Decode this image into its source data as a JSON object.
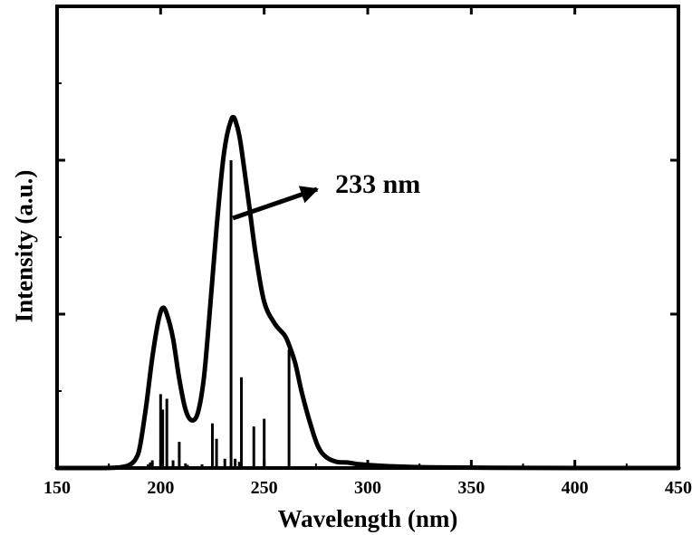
{
  "chart_data": {
    "type": "line",
    "title": "",
    "xlabel": "Wavelength (nm)",
    "ylabel": "Intensity (a.u.)",
    "xlim": [
      150,
      450
    ],
    "ylim": [
      0,
      1.5
    ],
    "x_ticks": [
      150,
      200,
      250,
      300,
      350,
      400,
      450
    ],
    "x_tick_labels": [
      "150",
      "200",
      "250",
      "300",
      "350",
      "400",
      "450"
    ],
    "y_ticks": [
      0,
      0.5,
      1.0,
      1.5
    ],
    "y_tick_labels_shown": false,
    "grid": false,
    "legend": "none",
    "series": [
      {
        "kind": "curve",
        "x": [
          150,
          170,
          180,
          185,
          188,
          190,
          193,
          196,
          199,
          201,
          203,
          206,
          209,
          212,
          215,
          218,
          221,
          224,
          227,
          230,
          232,
          234,
          235,
          236,
          238,
          240,
          243,
          246,
          250,
          255,
          260,
          262,
          265,
          268,
          272,
          276,
          280,
          285,
          290,
          295,
          300,
          310,
          330,
          360,
          400,
          450
        ],
        "y": [
          0,
          0,
          0.002,
          0.01,
          0.03,
          0.07,
          0.2,
          0.36,
          0.48,
          0.52,
          0.5,
          0.42,
          0.29,
          0.19,
          0.155,
          0.18,
          0.3,
          0.53,
          0.78,
          0.99,
          1.08,
          1.13,
          1.14,
          1.13,
          1.08,
          0.99,
          0.84,
          0.69,
          0.54,
          0.47,
          0.43,
          0.4,
          0.34,
          0.25,
          0.15,
          0.07,
          0.035,
          0.02,
          0.018,
          0.013,
          0.01,
          0.006,
          0.002,
          0.001,
          0,
          0
        ]
      },
      {
        "kind": "sticks",
        "x": [
          194,
          195,
          196,
          200,
          201,
          203,
          206,
          209,
          212,
          213,
          220,
          225,
          227,
          231,
          234,
          236,
          238,
          239,
          245,
          250,
          262
        ],
        "y": [
          0.012,
          0.018,
          0.025,
          0.24,
          0.19,
          0.225,
          0.025,
          0.085,
          0.015,
          0.01,
          0.012,
          0.145,
          0.095,
          0.03,
          1.0,
          0.03,
          0.02,
          0.295,
          0.135,
          0.16,
          0.385
        ]
      }
    ],
    "annotations": [
      {
        "text": "233 nm",
        "points_to": {
          "x": 234,
          "y": 0.8
        }
      }
    ]
  }
}
